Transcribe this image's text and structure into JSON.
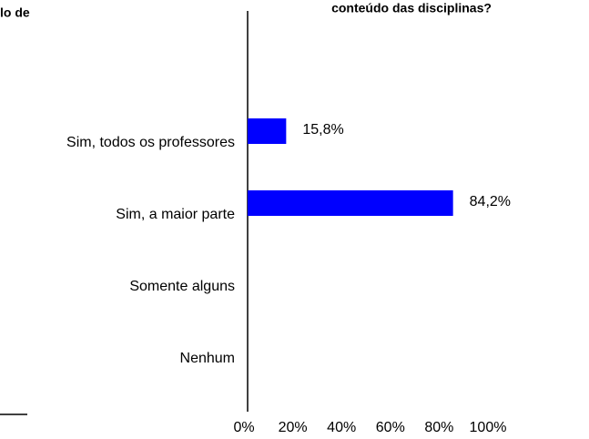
{
  "chart_data": {
    "type": "barh",
    "title": "conteúdo das disciplinas?",
    "annotations": [
      "lo de"
    ],
    "categories": [
      "Sim, todos os professores",
      "Sim, a maior parte",
      "Somente alguns",
      "Nenhum"
    ],
    "values": [
      15.8,
      84.2,
      0,
      0
    ],
    "value_labels": [
      "15,8%",
      "84,2%",
      null,
      null
    ],
    "color": "#0000ff",
    "xlim": [
      0,
      100
    ],
    "xticks": [
      {
        "value": 0,
        "label": "0%"
      },
      {
        "value": 20,
        "label": "20%"
      },
      {
        "value": 40,
        "label": "40%"
      },
      {
        "value": 60,
        "label": "60%"
      },
      {
        "value": 80,
        "label": "80%"
      },
      {
        "value": 100,
        "label": "100%"
      }
    ]
  }
}
